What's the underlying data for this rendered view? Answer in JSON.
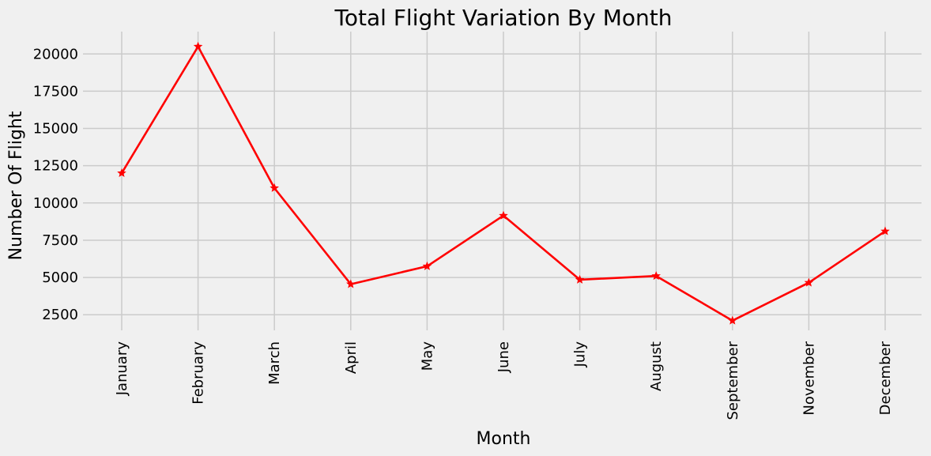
{
  "chart_data": {
    "type": "line",
    "title": "Total Flight Variation By Month",
    "xlabel": "Month",
    "ylabel": "Number Of Flight",
    "categories": [
      "January",
      "February",
      "March",
      "April",
      "May",
      "June",
      "July",
      "August",
      "September",
      "November",
      "December"
    ],
    "series": [
      {
        "values": [
          12000,
          20500,
          11000,
          4550,
          5750,
          9150,
          4850,
          5100,
          2100,
          4650,
          8100
        ],
        "color": "#ff0000",
        "marker": "star"
      }
    ],
    "y_ticks": [
      2500,
      5000,
      7500,
      10000,
      12500,
      15000,
      17500,
      20000
    ],
    "ylim": [
      1450,
      21500
    ],
    "grid": true
  }
}
